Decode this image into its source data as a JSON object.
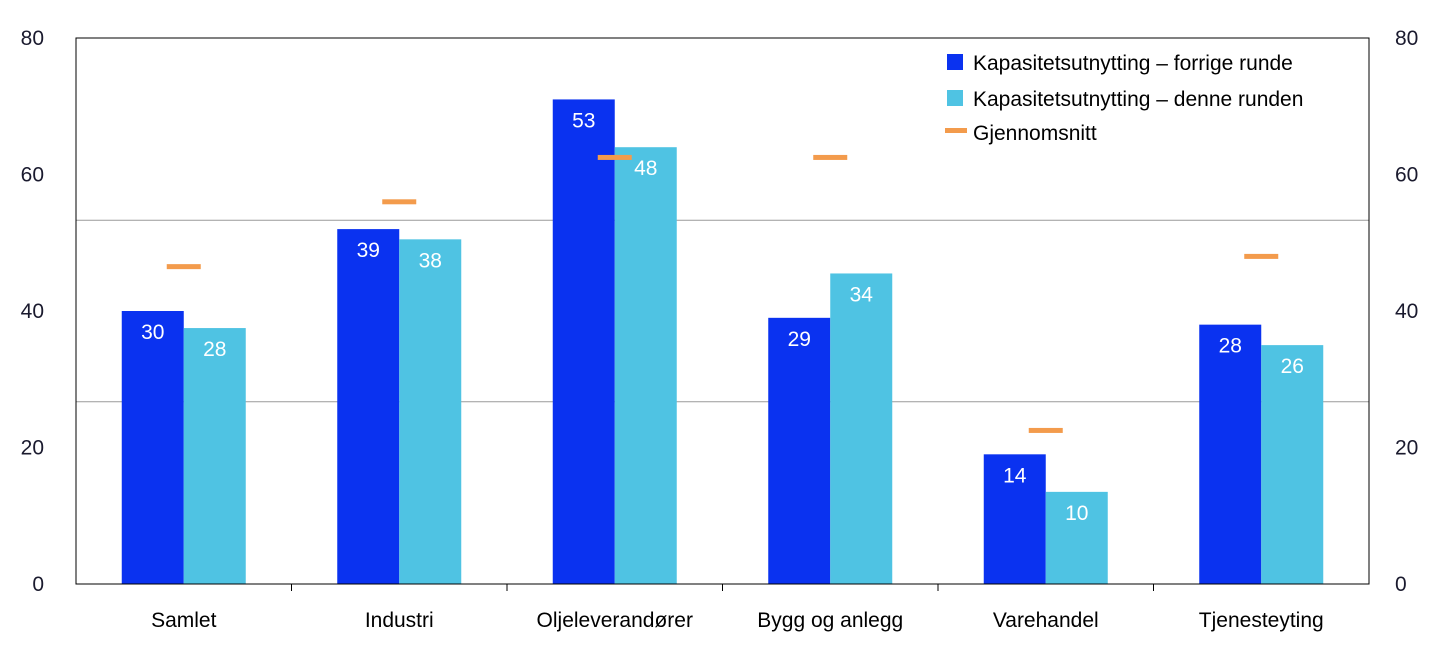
{
  "chart_data": {
    "type": "bar",
    "categories": [
      "Samlet",
      "Industri",
      "Oljeleverandører",
      "Bygg og anlegg",
      "Varehandel",
      "Tjenesteyting"
    ],
    "series": [
      {
        "name": "Kapasitetsutnytting – forrige runde",
        "values": [
          40,
          52,
          71,
          39,
          19,
          38
        ],
        "labels": [
          "30",
          "39",
          "53",
          "29",
          "14",
          "28"
        ],
        "color": "#0a32f0"
      },
      {
        "name": "Kapasitetsutnytting – denne runden",
        "values": [
          37.5,
          50.5,
          64,
          45.5,
          13.5,
          35
        ],
        "labels": [
          "28",
          "38",
          "48",
          "34",
          "10",
          "26"
        ],
        "color": "#4fc3e3"
      }
    ],
    "average": {
      "name": "Gjennomsnitt",
      "values": [
        46.5,
        56,
        62.5,
        62.5,
        22.5,
        48
      ],
      "color": "#f39b4c"
    },
    "ylim": [
      0,
      80
    ],
    "yticks": [
      "0",
      "20",
      "40",
      "60",
      "80"
    ],
    "y2ticks": [
      "0",
      "20",
      "40",
      "60",
      "80"
    ],
    "gridlines": [
      26.7,
      53.3
    ],
    "legend_position": "top-right",
    "title": "",
    "xlabel": "",
    "ylabel": ""
  }
}
